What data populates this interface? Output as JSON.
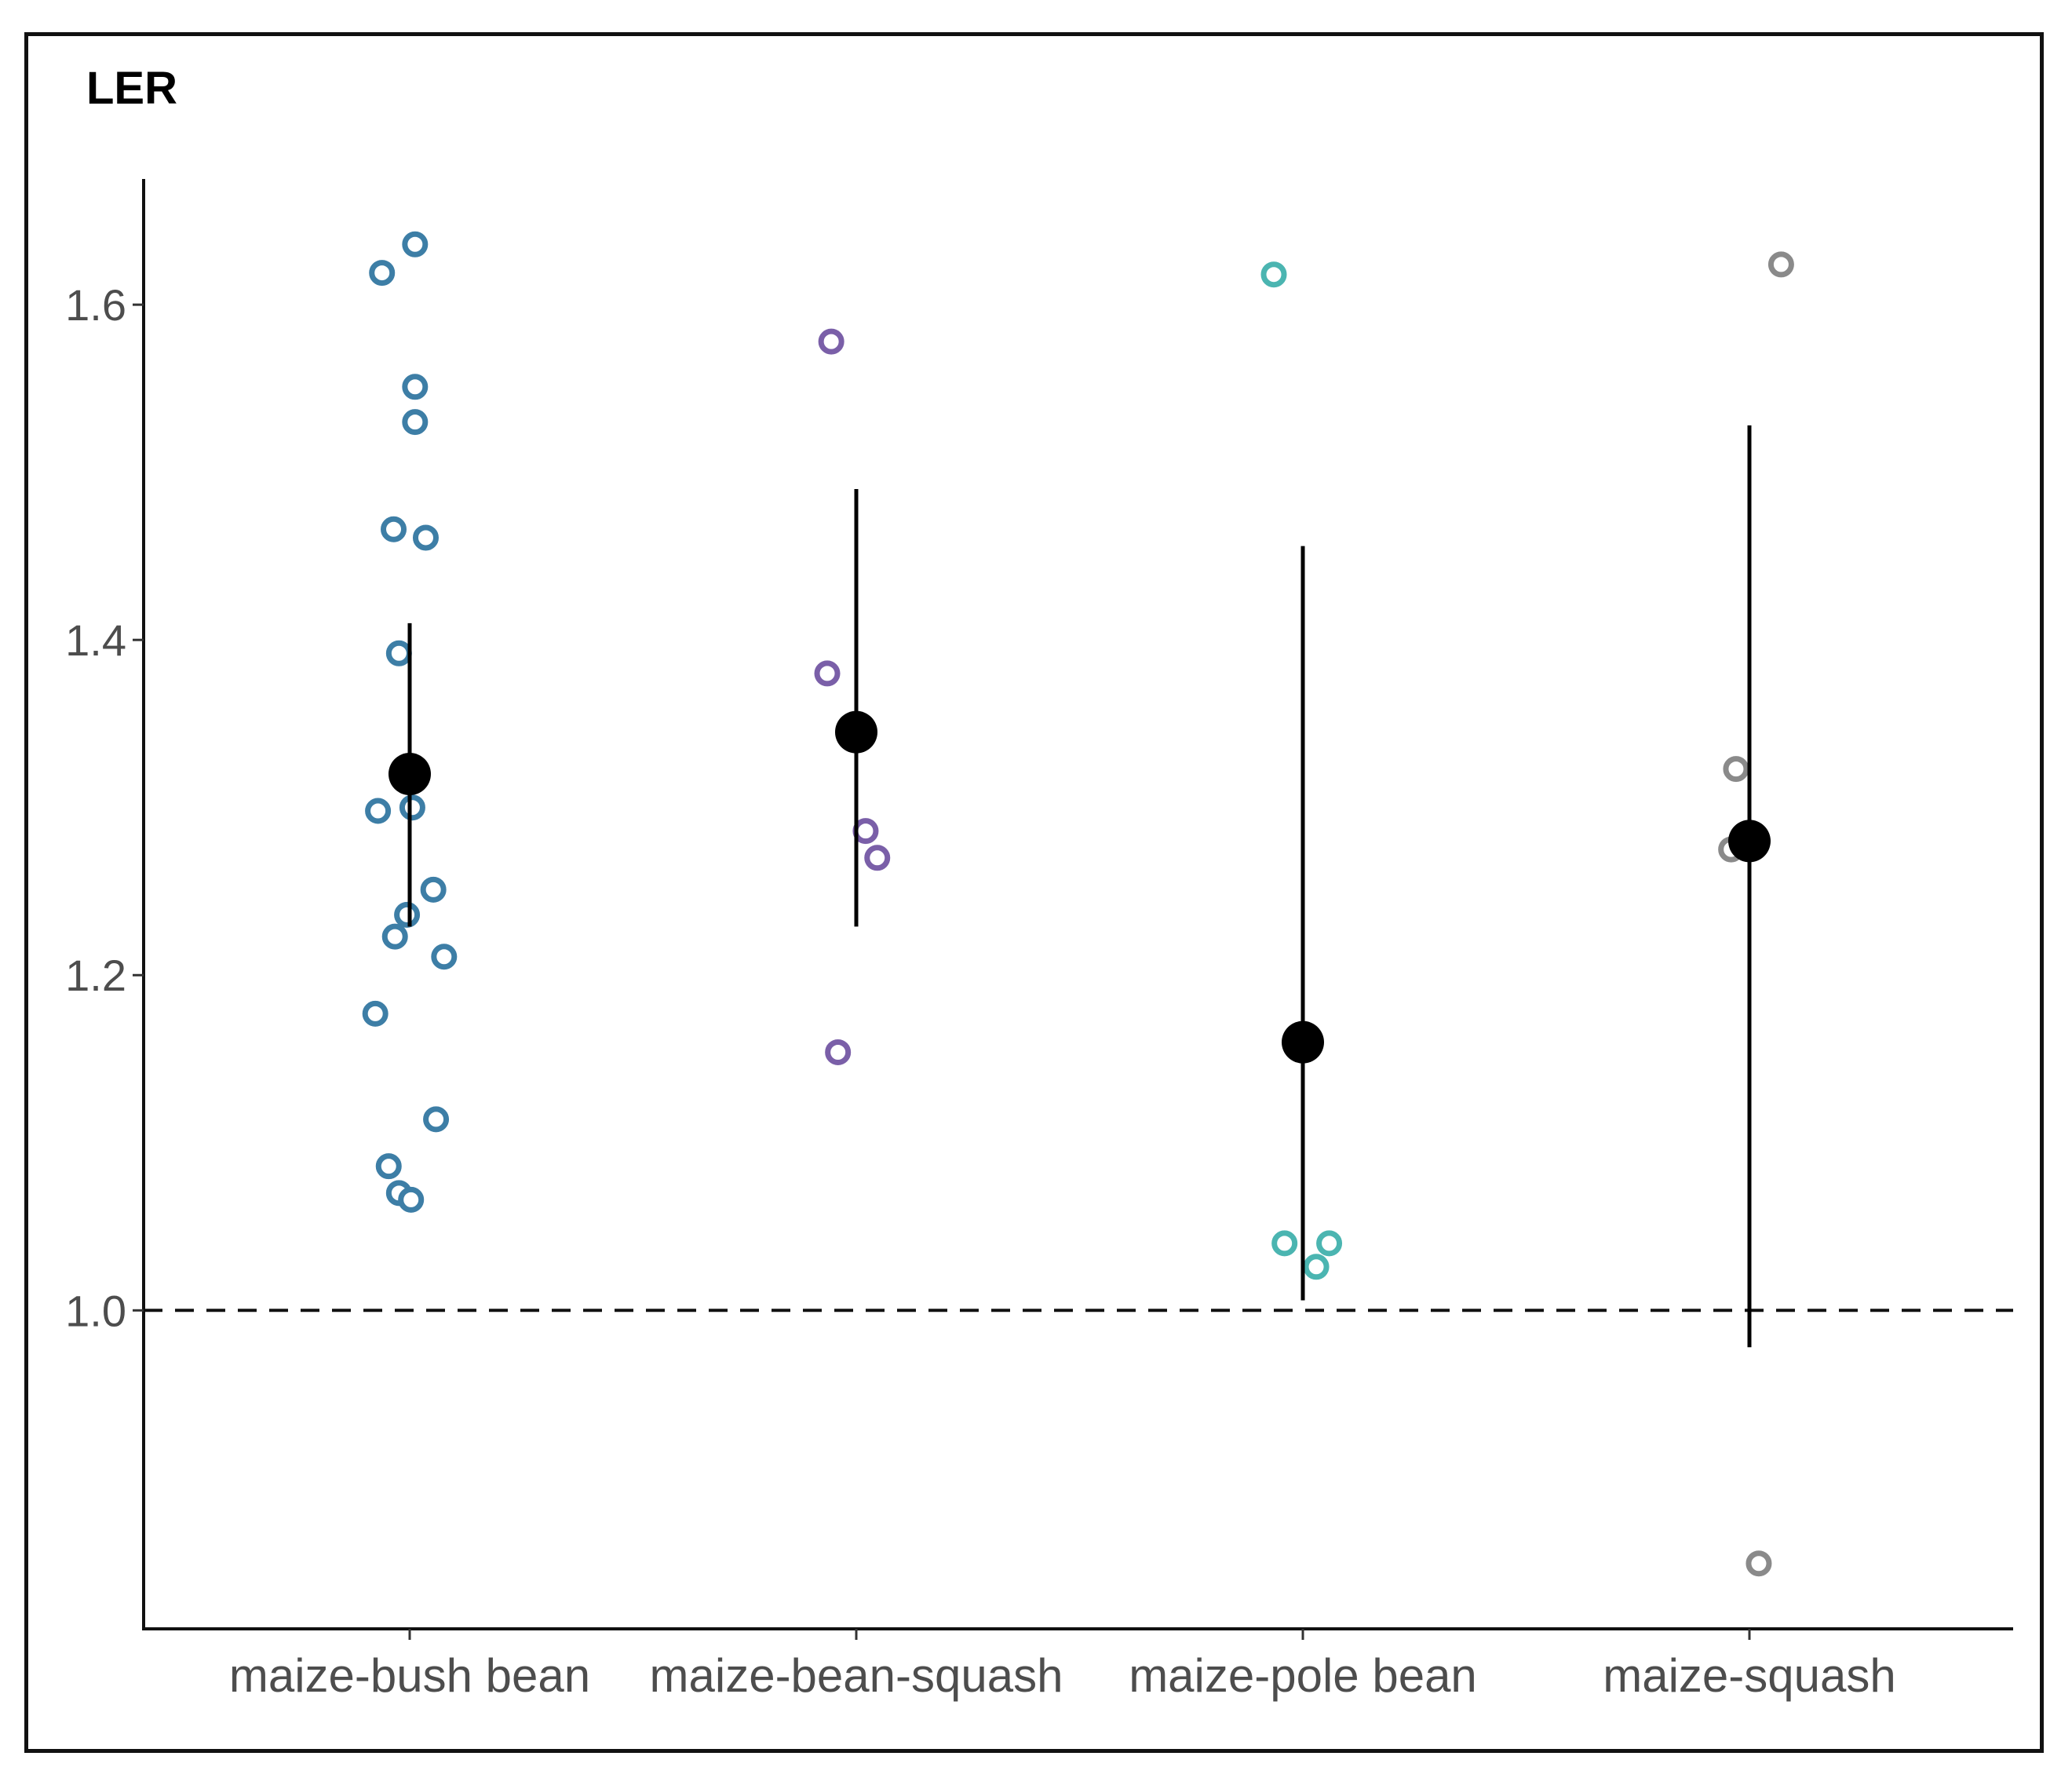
{
  "chart_data": {
    "type": "scatter",
    "title": "LER",
    "xlabel": "",
    "ylabel": "",
    "ylim": [
      0.81,
      1.675
    ],
    "yticks": [
      1.0,
      1.2,
      1.4,
      1.6
    ],
    "ytick_labels": [
      "1.0",
      "1.2",
      "1.4",
      "1.6"
    ],
    "reference_line": {
      "y": 1.0,
      "style": "dashed"
    },
    "categories": [
      "maize-bush bean",
      "maize-bean-squash",
      "maize-pole bean",
      "maize-squash"
    ],
    "series": [
      {
        "name": "maize-bush bean",
        "color": "#3d7ea6",
        "points": [
          1.636,
          1.619,
          1.551,
          1.53,
          1.466,
          1.461,
          1.392,
          1.3,
          1.298,
          1.251,
          1.236,
          1.223,
          1.211,
          1.177,
          1.114,
          1.086,
          1.07,
          1.066
        ],
        "jitter": [
          0.012,
          -0.062,
          0.012,
          0.012,
          -0.036,
          0.036,
          -0.024,
          0.006,
          -0.071,
          0.053,
          -0.006,
          -0.033,
          0.077,
          -0.077,
          0.059,
          -0.047,
          -0.024,
          0.003
        ],
        "mean": 1.32,
        "ci": [
          1.229,
          1.41
        ]
      },
      {
        "name": "maize-bean-squash",
        "color": "#7a5fa8",
        "points": [
          1.578,
          1.38,
          1.286,
          1.27,
          1.154
        ],
        "jitter": [
          -0.056,
          -0.065,
          0.021,
          0.047,
          -0.041
        ],
        "mean": 1.345,
        "ci": [
          1.229,
          1.49
        ]
      },
      {
        "name": "maize-pole bean",
        "color": "#4bb5b1",
        "points": [
          1.618,
          1.04,
          1.04,
          1.026
        ],
        "jitter": [
          -0.065,
          -0.041,
          0.059,
          0.03
        ],
        "mean": 1.16,
        "ci": [
          1.006,
          1.456
        ]
      },
      {
        "name": "maize-squash",
        "color": "#8a8a8a",
        "points": [
          1.624,
          1.323,
          1.275,
          0.849
        ],
        "jitter": [
          0.071,
          -0.03,
          -0.041,
          0.021
        ],
        "mean": 1.28,
        "ci": [
          0.978,
          1.528
        ]
      }
    ]
  }
}
